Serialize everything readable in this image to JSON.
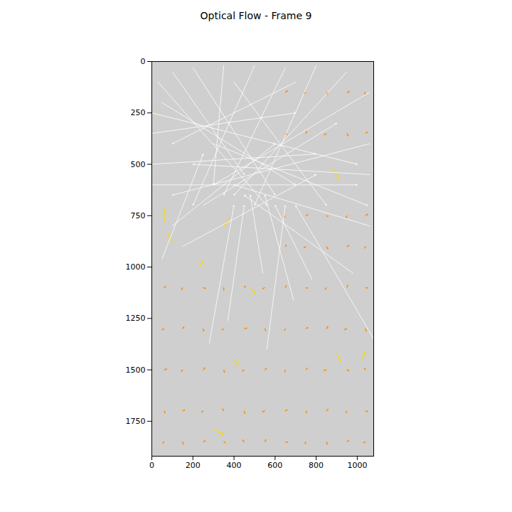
{
  "chart_data": {
    "type": "quiver",
    "title": "Optical Flow - Frame 9",
    "xlim": [
      0,
      1080
    ],
    "ylim": [
      1920,
      0
    ],
    "xticks": [
      0,
      200,
      400,
      600,
      800,
      1000
    ],
    "yticks": [
      0,
      250,
      500,
      750,
      1000,
      1250,
      1500,
      1750
    ],
    "grid": false,
    "series": [
      {
        "color": "#ffffff",
        "x": [
          30,
          50,
          100,
          200,
          350,
          500,
          650,
          800,
          950,
          1060,
          1060,
          1060,
          1060,
          980,
          780,
          690,
          560,
          370,
          280,
          540,
          50,
          100,
          0,
          0,
          250,
          1080,
          0,
          150,
          400,
          700,
          0,
          300
        ],
        "y": [
          100,
          200,
          50,
          30,
          20,
          20,
          30,
          20,
          50,
          150,
          400,
          550,
          800,
          1030,
          1060,
          1160,
          1400,
          1260,
          1370,
          1030,
          960,
          800,
          500,
          350,
          700,
          1350,
          600,
          900,
          100,
          100,
          250,
          400
        ],
        "u": [
          530,
          650,
          350,
          400,
          -50,
          -300,
          -300,
          -300,
          -550,
          -760,
          -960,
          -860,
          -660,
          -530,
          -180,
          -140,
          90,
          80,
          120,
          -60,
          200,
          500,
          800,
          700,
          650,
          -380,
          1000,
          650,
          450,
          -600,
          1000,
          750
        ],
        "v": [
          600,
          400,
          500,
          620,
          580,
          680,
          620,
          680,
          600,
          450,
          250,
          -50,
          -200,
          -380,
          -360,
          -510,
          -700,
          -560,
          -670,
          -380,
          -510,
          -400,
          -50,
          -100,
          -400,
          -650,
          0,
          -350,
          600,
          300,
          250,
          300
        ]
      },
      {
        "color": "#ff8c00",
        "x": [
          60,
          150,
          250,
          350,
          450,
          550,
          650,
          750,
          850,
          950,
          1040,
          60,
          150,
          250,
          350,
          450,
          550,
          650,
          750,
          850,
          950,
          1040,
          60,
          150,
          250,
          350,
          450,
          550,
          650,
          750,
          850,
          950,
          1040,
          60,
          150,
          250,
          350,
          450,
          550,
          650,
          750,
          850,
          950,
          1040,
          60,
          150,
          250,
          350,
          450,
          550,
          650,
          750,
          850,
          950,
          1040,
          650,
          750,
          850,
          950,
          1040,
          650,
          750,
          850,
          950,
          1040,
          650,
          750,
          850,
          950,
          1040,
          650,
          750,
          850,
          950,
          1040
        ],
        "y": [
          1100,
          1100,
          1100,
          1100,
          1100,
          1100,
          1100,
          1100,
          1100,
          1100,
          1100,
          1300,
          1300,
          1300,
          1300,
          1300,
          1300,
          1300,
          1300,
          1300,
          1300,
          1300,
          1500,
          1500,
          1500,
          1500,
          1500,
          1500,
          1500,
          1500,
          1500,
          1500,
          1500,
          1700,
          1700,
          1700,
          1700,
          1700,
          1700,
          1700,
          1700,
          1700,
          1700,
          1700,
          1850,
          1850,
          1850,
          1850,
          1850,
          1850,
          1850,
          1850,
          1850,
          1850,
          1850,
          150,
          150,
          150,
          150,
          150,
          350,
          350,
          350,
          350,
          350,
          750,
          750,
          750,
          750,
          750,
          900,
          900,
          900,
          900,
          900
        ],
        "u": [
          8,
          -5,
          12,
          0,
          6,
          -10,
          4,
          9,
          -6,
          3,
          10,
          -10,
          6,
          3,
          -8,
          12,
          5,
          -4,
          10,
          7,
          -12,
          4,
          12,
          -6,
          9,
          4,
          -10,
          8,
          -3,
          6,
          -12,
          10,
          -5,
          5,
          10,
          -8,
          -6,
          3,
          -12,
          9,
          4,
          8,
          -5,
          11,
          -7,
          4,
          10,
          8,
          -9,
          6,
          12,
          -5,
          4,
          9,
          -10,
          10,
          -8,
          6,
          12,
          -5,
          8,
          4,
          -10,
          6,
          9,
          -6,
          10,
          8,
          -4,
          12,
          5,
          -9,
          7,
          10,
          -3
        ],
        "v": [
          -6,
          10,
          4,
          12,
          -8,
          5,
          -10,
          3,
          8,
          -12,
          2,
          5,
          -9,
          12,
          6,
          -3,
          10,
          8,
          -6,
          -10,
          4,
          12,
          -4,
          8,
          -10,
          12,
          6,
          -7,
          11,
          -9,
          3,
          5,
          -8,
          10,
          -5,
          6,
          -10,
          12,
          4,
          -6,
          10,
          -9,
          8,
          3,
          6,
          12,
          -5,
          4,
          -8,
          -10,
          3,
          9,
          12,
          -6,
          5,
          -8,
          6,
          10,
          -4,
          9,
          5,
          -10,
          7,
          12,
          -6,
          9,
          -5,
          4,
          10,
          -8,
          -7,
          6,
          11,
          -5,
          8
        ]
      },
      {
        "color": "#ffd700",
        "x": [
          480,
          400,
          300,
          230,
          100,
          900,
          1020,
          380,
          880,
          60
        ],
        "y": [
          1100,
          1450,
          1790,
          1000,
          880,
          1420,
          1450,
          760,
          520,
          780
        ],
        "u": [
          25,
          20,
          50,
          20,
          -20,
          20,
          20,
          -30,
          30,
          0
        ],
        "v": [
          30,
          25,
          25,
          -30,
          -40,
          40,
          -35,
          40,
          50,
          -60
        ]
      }
    ]
  }
}
